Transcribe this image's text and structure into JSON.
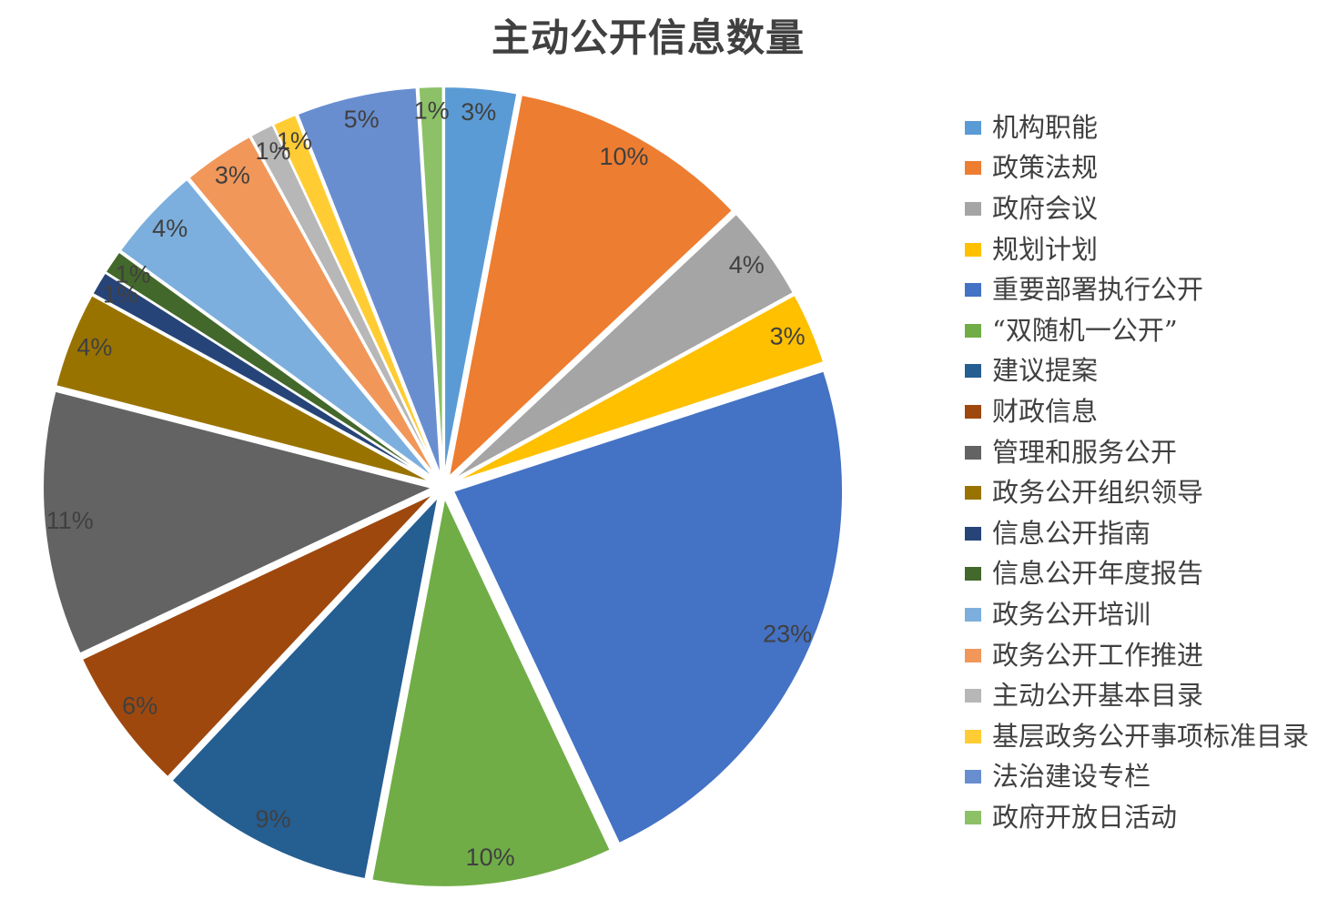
{
  "title": "主动公开信息数量",
  "text_color": "#404040",
  "chart_data": {
    "type": "pie",
    "title": "主动公开信息数量",
    "values_are": "percent_of_total",
    "start_angle_deg": 0,
    "direction": "clockwise",
    "exploded": true,
    "data_labels": "percent",
    "legend_position": "right",
    "slices": [
      {
        "label": "机构职能",
        "value": 3,
        "percent_label": "3%",
        "color": "#5B9BD5"
      },
      {
        "label": "政策法规",
        "value": 10,
        "percent_label": "10%",
        "color": "#ED7D31"
      },
      {
        "label": "政府会议",
        "value": 4,
        "percent_label": "4%",
        "color": "#A5A5A5"
      },
      {
        "label": "规划计划",
        "value": 3,
        "percent_label": "3%",
        "color": "#FFC000"
      },
      {
        "label": "重要部署执行公开",
        "value": 23,
        "percent_label": "23%",
        "color": "#4472C4"
      },
      {
        "label": "“双随机一公开”",
        "value": 10,
        "percent_label": "10%",
        "color": "#70AD47"
      },
      {
        "label": "建议提案",
        "value": 9,
        "percent_label": "9%",
        "color": "#255E91"
      },
      {
        "label": "财政信息",
        "value": 6,
        "percent_label": "6%",
        "color": "#9E480E"
      },
      {
        "label": "管理和服务公开",
        "value": 11,
        "percent_label": "11%",
        "color": "#636363"
      },
      {
        "label": "政务公开组织领导",
        "value": 4,
        "percent_label": "4%",
        "color": "#997300"
      },
      {
        "label": "信息公开指南",
        "value": 1,
        "percent_label": "1%",
        "color": "#264478"
      },
      {
        "label": "信息公开年度报告",
        "value": 1,
        "percent_label": "1%",
        "color": "#43682B"
      },
      {
        "label": "政务公开培训",
        "value": 4,
        "percent_label": "4%",
        "color": "#7CAFDD"
      },
      {
        "label": "政务公开工作推进",
        "value": 3,
        "percent_label": "3%",
        "color": "#F1975A"
      },
      {
        "label": "主动公开基本目录",
        "value": 1,
        "percent_label": "1%",
        "color": "#B7B7B7"
      },
      {
        "label": "基层政务公开事项标准目录",
        "value": 1,
        "percent_label": "1%",
        "color": "#FFCD33"
      },
      {
        "label": "法治建设专栏",
        "value": 5,
        "percent_label": "5%",
        "color": "#698ED0"
      },
      {
        "label": "政府开放日活动",
        "value": 1,
        "percent_label": "1%",
        "color": "#8CC168"
      }
    ]
  }
}
